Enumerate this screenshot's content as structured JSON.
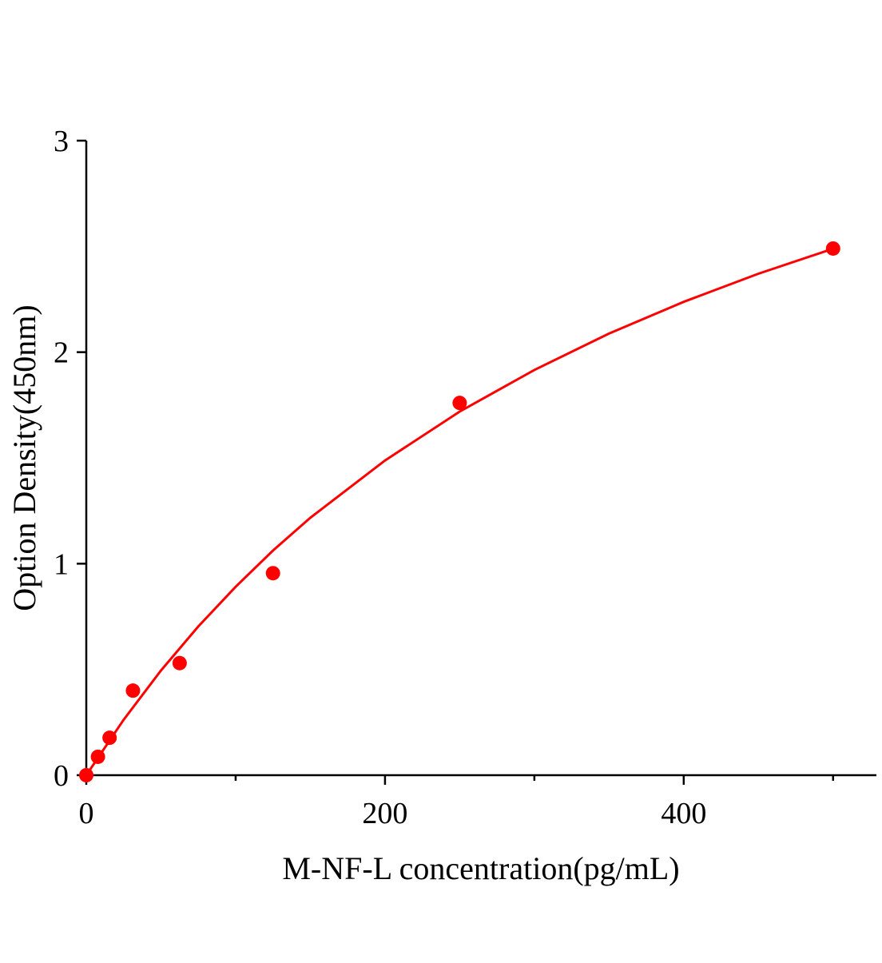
{
  "chart_data": {
    "type": "scatter",
    "title": "",
    "xlabel": "M-NF-L concentration(pg/mL)",
    "ylabel": "Option Density(450nm)",
    "xlim": [
      0,
      529
    ],
    "ylim": [
      0,
      3
    ],
    "x_ticks": [
      0,
      200,
      400
    ],
    "x_tick_labels": [
      "0",
      "200",
      "400"
    ],
    "x_minor_ticks": [
      100,
      300,
      500
    ],
    "y_ticks": [
      0,
      1,
      2,
      3
    ],
    "y_tick_labels": [
      "0",
      "1",
      "2",
      "3"
    ],
    "grid": false,
    "color": "#ff0000",
    "points": [
      {
        "x": 0,
        "y": 0.0
      },
      {
        "x": 7.8,
        "y": 0.087
      },
      {
        "x": 15.6,
        "y": 0.177
      },
      {
        "x": 31.25,
        "y": 0.4
      },
      {
        "x": 62.5,
        "y": 0.53
      },
      {
        "x": 125,
        "y": 0.955
      },
      {
        "x": 250,
        "y": 1.76
      },
      {
        "x": 500,
        "y": 2.49
      }
    ],
    "fit_curve": [
      [
        0,
        0
      ],
      [
        25,
        0.262
      ],
      [
        50,
        0.495
      ],
      [
        75,
        0.703
      ],
      [
        100,
        0.891
      ],
      [
        125,
        1.062
      ],
      [
        150,
        1.217
      ],
      [
        200,
        1.488
      ],
      [
        250,
        1.719
      ],
      [
        300,
        1.916
      ],
      [
        350,
        2.088
      ],
      [
        400,
        2.238
      ],
      [
        450,
        2.371
      ],
      [
        500,
        2.489
      ]
    ]
  }
}
